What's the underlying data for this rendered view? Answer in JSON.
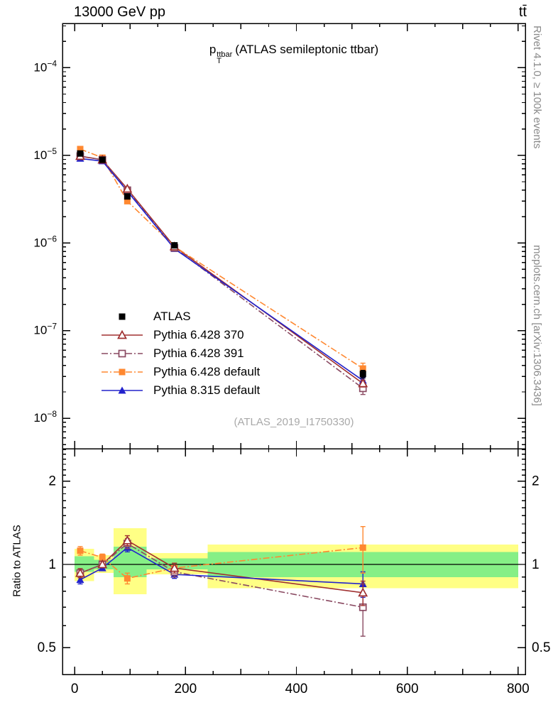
{
  "header": {
    "left": "13000 GeV pp",
    "right": "tt̄"
  },
  "plot_title": {
    "base": "p",
    "sub": "T",
    "sup": "ttbar",
    "rest": "(ATLAS semileptonic ttbar)"
  },
  "watermark": "(ATLAS_2019_I1750330)",
  "sidebar": {
    "top": "Rivet 4.1.0, ≥ 100k events",
    "bottom": "mcplots.cern.ch [arXiv:1306.3436]"
  },
  "chart_data": {
    "type": "line",
    "title": "pT^ttbar (ATLAS semileptonic ttbar)",
    "xlabel": "",
    "xlim": [
      -22,
      813
    ],
    "xticks_major": [
      0,
      200,
      400,
      600,
      800
    ],
    "x": [
      10,
      50,
      95,
      180,
      520
    ],
    "main": {
      "ylog": true,
      "ylim": [
        4.5e-09,
        0.00032
      ],
      "ytick_exponents": [
        -4,
        -5,
        -6,
        -7,
        -8
      ]
    },
    "ratio": {
      "ylabel": "Ratio to ATLAS",
      "ylog": true,
      "ylim": [
        0.4,
        2.62
      ],
      "yticks": [
        0.5,
        1,
        2
      ],
      "bands": {
        "bin_edges": [
          0,
          35,
          70,
          130,
          240,
          800
        ],
        "yellow": [
          [
            0.87,
            1.14
          ],
          [
            0.93,
            1.08
          ],
          [
            0.78,
            1.35
          ],
          [
            0.92,
            1.1
          ],
          [
            0.82,
            1.18
          ]
        ],
        "green": [
          [
            0.94,
            1.07
          ],
          [
            0.96,
            1.04
          ],
          [
            0.9,
            1.16
          ],
          [
            0.96,
            1.05
          ],
          [
            0.9,
            1.11
          ]
        ]
      }
    },
    "band_colors": {
      "yellow": "#ffff85",
      "green": "#86ef86"
    },
    "series": [
      {
        "name": "ATLAS",
        "color": "#000000",
        "marker": "square-filled",
        "line": "none",
        "y": [
          1.05e-05,
          8.9e-06,
          3.4e-06,
          9.4e-07,
          3.2e-08
        ],
        "yerr_rel": [
          0.04,
          0.03,
          0.05,
          0.04,
          0.1
        ],
        "ratio": null,
        "ratio_err": null
      },
      {
        "name": "Pythia 6.428 370",
        "color": "#a03030",
        "marker": "triangle-open",
        "line": "solid",
        "y": [
          9.8e-06,
          8.9e-06,
          4.15e-06,
          9.1e-07,
          2.5e-08
        ],
        "yerr_rel": [
          0.03,
          0.02,
          0.04,
          0.03,
          0.09
        ],
        "ratio": [
          0.93,
          1.0,
          1.22,
          0.97,
          0.79
        ],
        "ratio_err": [
          0.035,
          0.025,
          0.05,
          0.04,
          0.08
        ]
      },
      {
        "name": "Pythia 6.428 391",
        "color": "#8a4a62",
        "marker": "square-open",
        "line": "dashdot",
        "y": [
          9.8e-06,
          8.9e-06,
          4e-06,
          8.8e-07,
          2.2e-08
        ],
        "yerr_rel": [
          0.03,
          0.02,
          0.04,
          0.03,
          0.15
        ],
        "ratio": [
          0.93,
          1.0,
          1.19,
          0.94,
          0.7
        ],
        "ratio_err": [
          0.035,
          0.025,
          0.05,
          0.04,
          0.15
        ]
      },
      {
        "name": "Pythia 6.428 default",
        "color": "#ff8830",
        "marker": "square-filled",
        "line": "dashdot",
        "y": [
          1.18e-05,
          9.4e-06,
          3e-06,
          9.1e-07,
          3.7e-08
        ],
        "yerr_rel": [
          0.05,
          0.03,
          0.04,
          0.03,
          0.15
        ],
        "ratio": [
          1.12,
          1.06,
          0.89,
          0.97,
          1.15
        ],
        "ratio_err": [
          0.04,
          0.03,
          0.04,
          0.04,
          0.22
        ]
      },
      {
        "name": "Pythia 8.315 default",
        "color": "#2222cc",
        "marker": "triangle-filled",
        "line": "solid",
        "y": [
          9.2e-06,
          8.6e-06,
          3.9e-06,
          8.6e-07,
          2.7e-08
        ],
        "yerr_rel": [
          0.03,
          0.02,
          0.03,
          0.03,
          0.09
        ],
        "ratio": [
          0.88,
          0.97,
          1.15,
          0.92,
          0.85
        ],
        "ratio_err": [
          0.03,
          0.02,
          0.04,
          0.03,
          0.09
        ]
      }
    ],
    "legend_position": "center-left"
  }
}
